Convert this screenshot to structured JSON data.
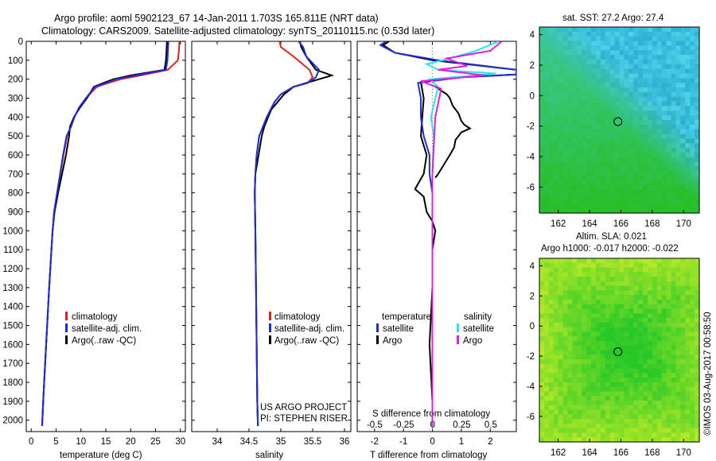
{
  "header": {
    "line1": "Argo profile: aoml 5902123_67 14-Jan-2011 1.703S 165.811E (NRT data)",
    "line2": "Climatology: CARS2009. Satellite-adjusted climatology: synTS_20110115.nc (0.53d later)"
  },
  "colors": {
    "climatology": "#e8201a",
    "satellite": "#1a2fd8",
    "argo": "#000000",
    "satellite_salinity": "#28e6ee",
    "argo_salinity": "#e020d8"
  },
  "chart_data": [
    {
      "type": "line",
      "xlabel": "temperature (deg C)",
      "ylabel": "",
      "xlim": [
        -1,
        31
      ],
      "ylim": [
        2060,
        0
      ],
      "y_inverted": true,
      "xticks": [
        0,
        5,
        10,
        15,
        20,
        25,
        30
      ],
      "yticks": [
        0,
        100,
        200,
        300,
        400,
        500,
        600,
        700,
        800,
        900,
        1000,
        1100,
        1200,
        1300,
        1400,
        1500,
        1600,
        1700,
        1800,
        1900,
        2000
      ],
      "legend": [
        "climatology",
        "satellite-adj. clim.",
        "Argo(..raw -QC)"
      ],
      "legend_position": "lower-center",
      "series": [
        {
          "name": "climatology",
          "color": "#e8201a",
          "x": [
            29.8,
            29.7,
            29.5,
            27.5,
            22.0,
            18.0,
            15.5,
            13.2,
            11.0,
            9.6,
            8.7,
            8.0,
            7.2,
            6.5,
            5.2,
            4.6,
            4.3,
            3.6,
            3.0,
            2.6,
            2.4,
            2.2
          ],
          "y": [
            0,
            50,
            100,
            150,
            180,
            200,
            220,
            240,
            300,
            350,
            400,
            450,
            500,
            600,
            800,
            900,
            1000,
            1300,
            1600,
            1800,
            1900,
            2030
          ]
        },
        {
          "name": "satellite-adj. clim.",
          "color": "#1a2fd8",
          "x": [
            27.6,
            27.5,
            27.4,
            27.1,
            21.0,
            17.0,
            15.0,
            12.8,
            11.0,
            9.6,
            8.7,
            8.0,
            7.1,
            6.4,
            5.2,
            4.6,
            4.3,
            3.6,
            3.0,
            2.6,
            2.4,
            2.2
          ],
          "y": [
            0,
            50,
            100,
            150,
            180,
            200,
            220,
            240,
            300,
            350,
            400,
            450,
            500,
            600,
            800,
            900,
            1000,
            1300,
            1600,
            1800,
            1900,
            2030
          ]
        },
        {
          "name": "Argo(..raw -QC)",
          "color": "#000000",
          "x": [
            27.3,
            27.2,
            27.1,
            26.8,
            20.0,
            16.5,
            14.5,
            12.6,
            11.2,
            9.8,
            8.6,
            7.8,
            7.6,
            7.0,
            5.4,
            4.7,
            4.3,
            3.6,
            3.0,
            2.6,
            2.4,
            2.2
          ],
          "y": [
            0,
            50,
            100,
            150,
            180,
            200,
            220,
            240,
            300,
            350,
            400,
            450,
            500,
            600,
            800,
            900,
            1000,
            1300,
            1600,
            1800,
            1900,
            2030
          ]
        }
      ]
    },
    {
      "type": "line",
      "xlabel": "salinity",
      "xlim": [
        33.6,
        36.1
      ],
      "ylim": [
        2060,
        0
      ],
      "y_inverted": true,
      "xticks": [
        34,
        34.5,
        35,
        35.5,
        36
      ],
      "tick_labels": [
        "34",
        "34.5",
        "35",
        "35.5",
        "36"
      ],
      "legend": [
        "climatology",
        "satellite-adj. clim.",
        "Argo(..raw -QC)"
      ],
      "legend_position": "lower-center",
      "annotations": [
        "US ARGO PROJECT",
        "PI: STEPHEN RISER"
      ],
      "series": [
        {
          "name": "climatology",
          "color": "#e8201a",
          "x": [
            34.98,
            35.0,
            35.2,
            35.45,
            35.5,
            35.42,
            35.2,
            35.0,
            34.9,
            34.84,
            34.78,
            34.72,
            34.66,
            34.62,
            34.6,
            34.59,
            34.6,
            34.61,
            34.62,
            34.63,
            34.64
          ],
          "y": [
            0,
            30,
            80,
            150,
            190,
            220,
            240,
            280,
            320,
            360,
            400,
            450,
            500,
            600,
            700,
            800,
            1000,
            1300,
            1600,
            1900,
            2030
          ]
        },
        {
          "name": "satellite-adj. clim.",
          "color": "#1a2fd8",
          "x": [
            35.28,
            35.35,
            35.4,
            35.6,
            35.55,
            35.42,
            35.2,
            35.0,
            34.9,
            34.84,
            34.78,
            34.72,
            34.66,
            34.62,
            34.6,
            34.59,
            34.6,
            34.61,
            34.62,
            34.63,
            34.64
          ],
          "y": [
            0,
            30,
            80,
            150,
            190,
            220,
            240,
            280,
            320,
            360,
            400,
            450,
            500,
            600,
            700,
            800,
            1000,
            1300,
            1600,
            1900,
            2030
          ]
        },
        {
          "name": "Argo(..raw -QC)",
          "color": "#000000",
          "x": [
            35.3,
            35.32,
            35.4,
            35.55,
            35.8,
            35.45,
            35.2,
            35.05,
            34.95,
            34.85,
            34.8,
            34.74,
            34.7,
            34.65,
            34.6,
            34.59,
            34.6,
            34.61,
            34.62,
            34.63,
            34.64
          ],
          "y": [
            0,
            30,
            80,
            150,
            180,
            215,
            240,
            280,
            320,
            360,
            400,
            450,
            500,
            600,
            700,
            800,
            1000,
            1300,
            1600,
            1900,
            2030
          ]
        }
      ]
    },
    {
      "type": "line",
      "xlabel": "T difference from climatology",
      "xlabel_top": "S difference from climatology",
      "xlim": [
        -2.6,
        2.9
      ],
      "ylim": [
        2060,
        0
      ],
      "y_inverted": true,
      "xticks": [
        -2,
        -1,
        0,
        1,
        2
      ],
      "top_ticks": [
        -0.5,
        -0.25,
        0,
        0.25,
        0.5
      ],
      "top_tick_labels": [
        "-0.5",
        "-0.25",
        "0",
        "0.25",
        "0.5"
      ],
      "legend": [
        "temperature",
        "satellite",
        "Argo",
        "salinity",
        "satellite",
        "Argo"
      ],
      "legend_position": "lower-center",
      "series": [
        {
          "name": "temperature satellite",
          "color": "#1a2fd8",
          "x": [
            -1.6,
            -1.8,
            -1.3,
            0.2,
            2.9,
            2.9,
            1.0,
            -0.5,
            -0.4,
            -0.4,
            -0.3,
            -0.1,
            -0.1,
            0.0,
            0.0,
            0.0,
            0.0,
            0.0
          ],
          "y": [
            0,
            20,
            60,
            100,
            150,
            175,
            190,
            220,
            300,
            400,
            500,
            600,
            700,
            800,
            1000,
            1300,
            1600,
            2030
          ]
        },
        {
          "name": "temperature Argo",
          "color": "#000000",
          "x": [
            -1.5,
            -1.7,
            -1.3,
            0.0,
            2.9,
            2.9,
            1.0,
            -0.4,
            -0.3,
            -0.35,
            -0.4,
            -0.2,
            -0.3,
            -0.6,
            -0.3,
            -0.2,
            0.0,
            0.1,
            0.0,
            0.0,
            -0.1,
            0.0,
            0.0
          ],
          "y": [
            0,
            20,
            60,
            100,
            150,
            175,
            190,
            215,
            300,
            400,
            500,
            600,
            700,
            780,
            820,
            900,
            950,
            1000,
            1100,
            1300,
            1600,
            1900,
            2030
          ]
        },
        {
          "name": "salinity satellite",
          "color": "#28e6ee",
          "x": [
            2.3,
            1.5,
            0.6,
            -0.2,
            0.2,
            2.2,
            -0.1,
            0.2,
            0.1,
            -0.05,
            0.05,
            0.0,
            0.0,
            0.0,
            0.0
          ],
          "y": [
            0,
            50,
            90,
            120,
            150,
            170,
            200,
            240,
            300,
            400,
            500,
            700,
            1000,
            1500,
            2030
          ]
        },
        {
          "name": "salinity Argo",
          "color": "#e020d8",
          "x": [
            2.4,
            2.0,
            0.5,
            1.2,
            0.2,
            1.8,
            -0.4,
            0.3,
            0.1,
            0.0,
            0.0,
            0.0
          ],
          "y": [
            0,
            50,
            90,
            130,
            150,
            180,
            210,
            250,
            400,
            700,
            1000,
            2030
          ]
        },
        {
          "name": "S difference (Argo - clim)",
          "color": "#000000",
          "x": [
            0.1,
            0.3,
            0.5,
            0.6,
            0.7,
            0.9,
            1.0,
            1.1,
            1.3,
            1.0,
            0.9,
            0.8,
            0.75,
            0.6,
            0.4,
            0.2,
            0.1
          ],
          "y": [
            240,
            260,
            280,
            300,
            340,
            380,
            420,
            440,
            460,
            480,
            500,
            520,
            560,
            600,
            650,
            700,
            720
          ]
        }
      ]
    },
    {
      "type": "heatmap",
      "title": "sat. SST: 27.2  Argo: 27.4",
      "xlim": [
        160.8,
        171
      ],
      "ylim": [
        -7.7,
        4.5
      ],
      "xticks": [
        162,
        164,
        166,
        168,
        170
      ],
      "yticks": [
        4,
        2,
        0,
        -2,
        -4,
        -6
      ],
      "marker": {
        "x": 165.811,
        "y": -1.703
      }
    },
    {
      "type": "heatmap",
      "title": "Altim. SLA: 0.021",
      "subtitle": "Argo h1000: -0.017 h2000: -0.022",
      "xlim": [
        160.8,
        171
      ],
      "ylim": [
        -7.7,
        4.5
      ],
      "xticks": [
        162,
        164,
        166,
        168,
        170
      ],
      "yticks": [
        4,
        2,
        0,
        -2,
        -4,
        -6
      ],
      "marker": {
        "x": 165.811,
        "y": -1.703
      }
    }
  ],
  "footer": {
    "stamp": "©IMOS 03-Aug-2017 00:58:50"
  }
}
